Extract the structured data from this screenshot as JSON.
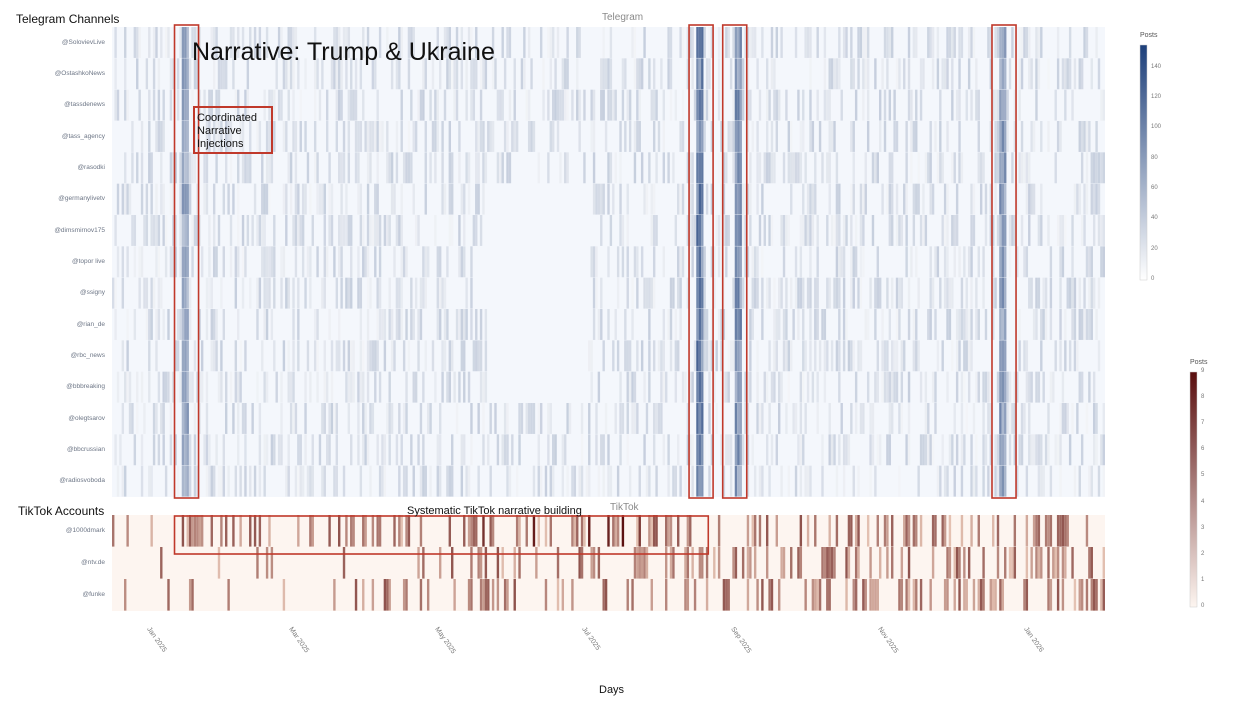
{
  "chart_data": [
    {
      "type": "heatmap",
      "panel": "telegram",
      "section_label": "Telegram Channels",
      "title": "Telegram",
      "narrative_title": "Narrative: Trump & Ukraine",
      "rows": [
        "@SolovievLive",
        "@OstashkoNews",
        "@tassdenews",
        "@tass_agency",
        "@rasodki",
        "@germanylivetv",
        "@dimsmirnov175",
        "@topor live",
        "@ssigny",
        "@rian_de",
        "@rbc_news",
        "@bbbreaking",
        "@olegtsarov",
        "@bbcrussian",
        "@radiosvoboda"
      ],
      "colorbar": {
        "title": "Posts",
        "ticks": [
          0,
          20,
          40,
          60,
          80,
          100,
          120,
          140
        ],
        "range": [
          0,
          155
        ],
        "colors": [
          "#ffffff",
          "#1d3f7a"
        ]
      },
      "spikes": [
        {
          "date": "2025-01-14",
          "rows": "all",
          "intensity": 70
        },
        {
          "date": "2025-08-16",
          "rows": "all",
          "intensity": 110
        },
        {
          "date": "2025-09-01",
          "rows": "all",
          "intensity": 90
        },
        {
          "date": "2025-12-20",
          "rows": "all",
          "intensity": 80
        }
      ],
      "annotation": "Coordinated Narrative Injections",
      "highlight_windows": [
        {
          "start": "2025-01-10",
          "end": "2025-01-20"
        },
        {
          "start": "2025-08-12",
          "end": "2025-08-22"
        },
        {
          "start": "2025-08-26",
          "end": "2025-09-05"
        },
        {
          "start": "2025-12-16",
          "end": "2025-12-26"
        }
      ]
    },
    {
      "type": "heatmap",
      "panel": "tiktok",
      "section_label": "TikTok Accounts",
      "title": "TikTok",
      "rows": [
        "@1000dmark",
        "@ntv.de",
        "@funke"
      ],
      "colorbar": {
        "title": "Posts",
        "ticks": [
          0,
          1,
          2,
          3,
          4,
          5,
          6,
          7,
          8,
          9
        ],
        "range": [
          0,
          9
        ],
        "colors": [
          "#fdf5f0",
          "#5a0e0e"
        ]
      },
      "annotation": "Systematic TikTok narrative building",
      "highlight_window": {
        "start": "2025-01-10",
        "end": "2025-08-20"
      }
    }
  ],
  "x_axis": {
    "title": "Days",
    "start": "2024-12-15",
    "end": "2026-02-01",
    "ticks": [
      {
        "label": "Jan 2025",
        "date": "2025-01-01"
      },
      {
        "label": "Mar 2025",
        "date": "2025-03-01"
      },
      {
        "label": "May 2025",
        "date": "2025-05-01"
      },
      {
        "label": "Jul 2025",
        "date": "2025-07-01"
      },
      {
        "label": "Sep 2025",
        "date": "2025-09-01"
      },
      {
        "label": "Nov 2025",
        "date": "2025-11-01"
      },
      {
        "label": "Jan 2026",
        "date": "2026-01-01"
      }
    ]
  },
  "colors": {
    "annotation": "#c0392b",
    "telegram_high": "#1d3f7a",
    "tiktok_high": "#5a0e0e"
  }
}
